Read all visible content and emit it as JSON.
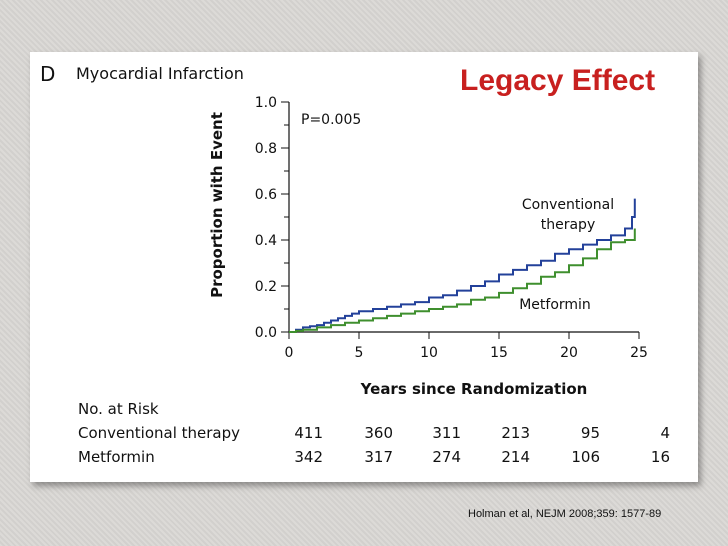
{
  "panel_letter": "D",
  "panel_title": "Myocardial Infarction",
  "annotation": "Legacy Effect",
  "citation": "Holman et al, NEJM 2008;359: 1577-89",
  "chart_data": {
    "type": "line",
    "xlabel": "Years since Randomization",
    "ylabel": "Proportion with Event",
    "xlim": [
      0,
      25
    ],
    "ylim": [
      0,
      1.0
    ],
    "xticks": [
      "0",
      "5",
      "10",
      "15",
      "20",
      "25"
    ],
    "yticks": [
      "0.0",
      "0.2",
      "0.4",
      "0.6",
      "0.8",
      "1.0"
    ],
    "p_value_label": "P=0.005",
    "series": [
      {
        "name": "Conventional therapy",
        "label_lines": [
          "Conventional",
          "therapy"
        ],
        "color": "#23419a",
        "x": [
          0,
          0.5,
          1,
          1.5,
          2,
          2.5,
          3,
          3.5,
          4,
          4.5,
          5,
          6,
          7,
          8,
          9,
          10,
          11,
          12,
          13,
          14,
          15,
          16,
          17,
          18,
          19,
          20,
          21,
          22,
          23,
          24,
          24.5,
          24.7
        ],
        "y": [
          0,
          0.01,
          0.02,
          0.025,
          0.03,
          0.04,
          0.05,
          0.06,
          0.07,
          0.08,
          0.09,
          0.1,
          0.11,
          0.12,
          0.13,
          0.15,
          0.16,
          0.18,
          0.2,
          0.22,
          0.25,
          0.27,
          0.29,
          0.31,
          0.34,
          0.36,
          0.38,
          0.4,
          0.42,
          0.45,
          0.5,
          0.58
        ]
      },
      {
        "name": "Metformin",
        "label_lines": [
          "Metformin"
        ],
        "color": "#3f8f2e",
        "x": [
          0,
          0.5,
          1,
          2,
          3,
          4,
          5,
          6,
          7,
          8,
          9,
          10,
          11,
          12,
          13,
          14,
          15,
          16,
          17,
          18,
          19,
          20,
          21,
          22,
          23,
          24,
          24.7
        ],
        "y": [
          0,
          0.005,
          0.01,
          0.02,
          0.03,
          0.04,
          0.05,
          0.06,
          0.07,
          0.08,
          0.09,
          0.1,
          0.11,
          0.12,
          0.14,
          0.15,
          0.17,
          0.19,
          0.21,
          0.24,
          0.26,
          0.29,
          0.32,
          0.36,
          0.39,
          0.4,
          0.45
        ]
      }
    ]
  },
  "risk_table": {
    "header": "No. at Risk",
    "rows": [
      {
        "label": "Conventional therapy",
        "values": [
          "411",
          "360",
          "311",
          "213",
          "95",
          "4"
        ]
      },
      {
        "label": "Metformin",
        "values": [
          "342",
          "317",
          "274",
          "214",
          "106",
          "16"
        ]
      }
    ]
  }
}
